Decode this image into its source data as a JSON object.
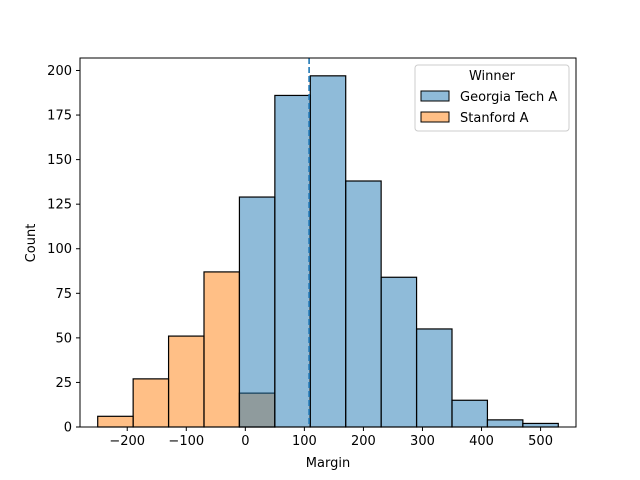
{
  "chart_data": {
    "type": "histogram",
    "xlabel": "Margin",
    "ylabel": "Count",
    "xlim": [
      -280,
      560
    ],
    "ylim": [
      0,
      207
    ],
    "xticks": [
      -200,
      -100,
      0,
      100,
      200,
      300,
      400,
      500
    ],
    "yticks": [
      0,
      25,
      50,
      75,
      100,
      125,
      150,
      175,
      200
    ],
    "grid": false,
    "legend": {
      "title": "Winner",
      "placement": "top-right",
      "entries": [
        {
          "name": "Georgia Tech A",
          "color": "#1f77b4"
        },
        {
          "name": "Stanford A",
          "color": "#ff7f0e"
        }
      ]
    },
    "bar_alpha": 0.5,
    "reference_line": {
      "x": 108,
      "style": "dashed",
      "color": "#1f77b4"
    },
    "series": [
      {
        "name": "Stanford A",
        "color": "#ff7f0e",
        "bins": [
          {
            "x0": -250,
            "x1": -190,
            "count": 6
          },
          {
            "x0": -190,
            "x1": -130,
            "count": 27
          },
          {
            "x0": -130,
            "x1": -70,
            "count": 51
          },
          {
            "x0": -70,
            "x1": -10,
            "count": 87
          },
          {
            "x0": -10,
            "x1": 50,
            "count": 19
          }
        ]
      },
      {
        "name": "Georgia Tech A",
        "color": "#1f77b4",
        "bins": [
          {
            "x0": -10,
            "x1": 50,
            "count": 129
          },
          {
            "x0": 50,
            "x1": 110,
            "count": 186
          },
          {
            "x0": 110,
            "x1": 170,
            "count": 197
          },
          {
            "x0": 170,
            "x1": 230,
            "count": 138
          },
          {
            "x0": 230,
            "x1": 290,
            "count": 84
          },
          {
            "x0": 290,
            "x1": 350,
            "count": 55
          },
          {
            "x0": 350,
            "x1": 410,
            "count": 15
          },
          {
            "x0": 410,
            "x1": 470,
            "count": 4
          },
          {
            "x0": 470,
            "x1": 530,
            "count": 2
          }
        ]
      }
    ]
  }
}
